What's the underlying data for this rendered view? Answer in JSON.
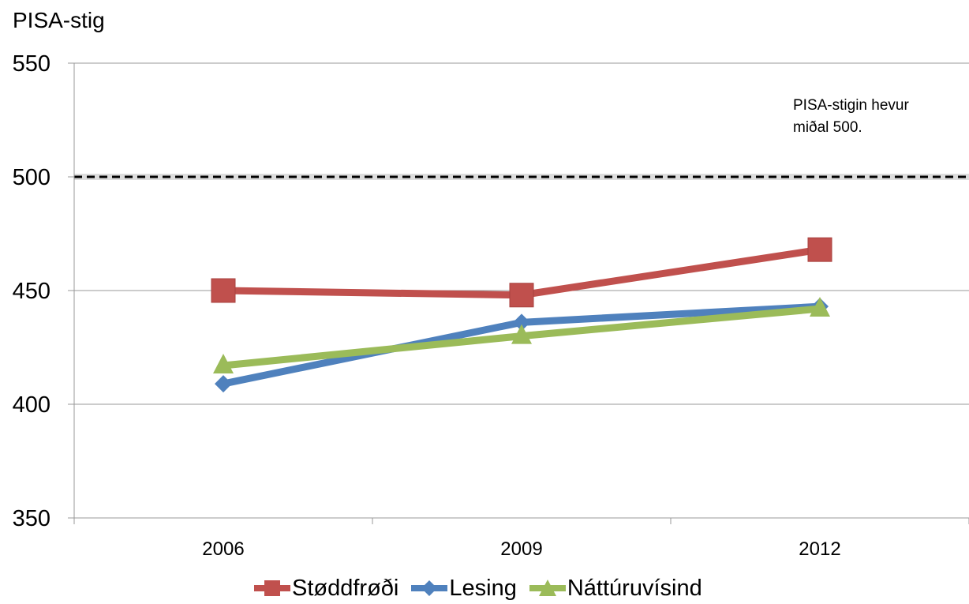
{
  "colors": {
    "red": "#C0504D",
    "blue": "#4F81BD",
    "green": "#9BBB59",
    "grid": "#999999",
    "reference": "#000000"
  },
  "note": {
    "line1": "PISA-stigin hevur",
    "line2": "miðal 500."
  },
  "chart_data": {
    "type": "line",
    "ylabel": "PISA-stig",
    "xlabel": "",
    "title": "",
    "categories": [
      "2006",
      "2009",
      "2012"
    ],
    "ylim": [
      350,
      550
    ],
    "yticks": [
      350,
      400,
      450,
      500,
      550
    ],
    "grid": true,
    "reference_line": {
      "value": 500,
      "style": "dashed"
    },
    "legend_position": "bottom",
    "series": [
      {
        "name": "Støddfrøði",
        "values": [
          450,
          448,
          468
        ],
        "color": "#C0504D",
        "marker": "square"
      },
      {
        "name": "Lesing",
        "values": [
          409,
          436,
          443
        ],
        "color": "#4F81BD",
        "marker": "diamond"
      },
      {
        "name": "Náttúruvísind",
        "values": [
          417,
          430,
          442
        ],
        "color": "#9BBB59",
        "marker": "triangle"
      }
    ]
  }
}
